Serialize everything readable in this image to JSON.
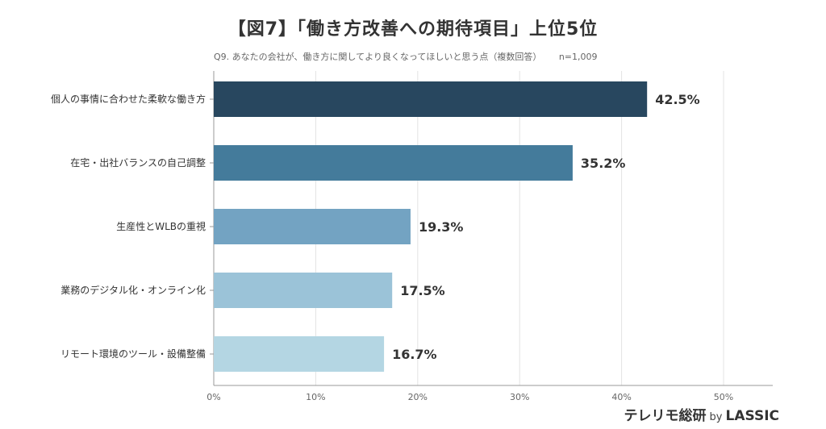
{
  "title": "【図7】「働き方改善への期待項目」上位5位",
  "subtitle": "Q9. あなたの会社が、働き方に関してより良くなってほしいと思う点（複数回答）",
  "sample_size": "n=1,009",
  "footer": {
    "brand": "テレリモ総研",
    "by": "by",
    "company": "LASSIC"
  },
  "colors": [
    "#28475f",
    "#447b9b",
    "#73a3c2",
    "#9bc3d8",
    "#b4d6e3"
  ],
  "chart_data": {
    "type": "bar",
    "orientation": "horizontal",
    "categories": [
      "個人の事情に合わせた柔軟な働き方",
      "在宅・出社バランスの自己調整",
      "生産性とWLBの重視",
      "業務のデジタル化・オンライン化",
      "リモート環境のツール・設備整備"
    ],
    "values": [
      42.5,
      35.2,
      19.3,
      17.5,
      16.7
    ],
    "value_labels": [
      "42.5%",
      "35.2%",
      "19.3%",
      "17.5%",
      "16.7%"
    ],
    "xlim": [
      0,
      50
    ],
    "xticks": [
      "0%",
      "10%",
      "20%",
      "30%",
      "40%",
      "50%"
    ],
    "grid": true
  }
}
